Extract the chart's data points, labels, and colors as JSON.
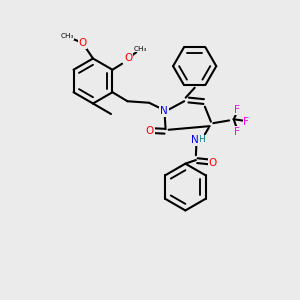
{
  "background_color": "#ebebeb",
  "bond_color": "#000000",
  "bond_width": 1.5,
  "atom_colors": {
    "N": "#0000ff",
    "O": "#ff0000",
    "F": "#ff00ff",
    "H": "#008080",
    "C": "#000000"
  },
  "font_size": 7.5
}
